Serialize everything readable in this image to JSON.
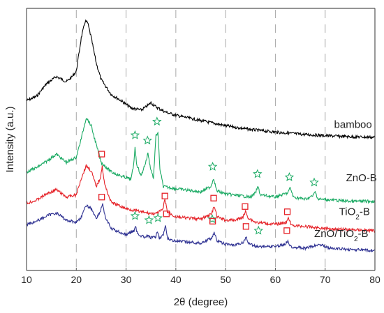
{
  "chart_data": {
    "type": "line",
    "title": "",
    "xlabel": "2θ (degree)",
    "ylabel": "Intensity (a.u.)",
    "xlim": [
      10,
      80
    ],
    "xticks": [
      "10",
      "20",
      "30",
      "40",
      "50",
      "60",
      "70",
      "80"
    ],
    "grid": "dashed vertical lines at 20, 30, 40, 50, 60, 70",
    "legend": "series labels printed at right end of each curve",
    "series": [
      {
        "name": "bamboo",
        "color": "#000000",
        "points": [
          [
            10,
            4.4
          ],
          [
            12,
            4.2
          ],
          [
            14,
            3.6
          ],
          [
            16,
            3.25
          ],
          [
            18,
            3.5
          ],
          [
            19,
            3.3
          ],
          [
            20,
            3.0
          ],
          [
            21,
            1.4
          ],
          [
            21.8,
            0.6
          ],
          [
            22.3,
            0.7
          ],
          [
            23,
            1.4
          ],
          [
            24,
            2.6
          ],
          [
            25,
            3.4
          ],
          [
            27,
            4.1
          ],
          [
            29,
            4.4
          ],
          [
            31,
            4.75
          ],
          [
            33,
            4.85
          ],
          [
            34,
            4.7
          ],
          [
            35,
            4.5
          ],
          [
            36,
            4.7
          ],
          [
            38,
            4.95
          ],
          [
            40,
            5.1
          ],
          [
            45,
            5.35
          ],
          [
            50,
            5.6
          ],
          [
            55,
            5.78
          ],
          [
            60,
            5.9
          ],
          [
            65,
            6.0
          ],
          [
            70,
            6.07
          ],
          [
            75,
            6.12
          ],
          [
            80,
            6.15
          ]
        ]
      },
      {
        "name": "ZnO-B",
        "color": "#1aaa63",
        "points": [
          [
            10,
            7.8
          ],
          [
            12,
            7.6
          ],
          [
            14,
            7.3
          ],
          [
            16,
            6.95
          ],
          [
            18,
            7.35
          ],
          [
            20,
            7.1
          ],
          [
            21,
            6.2
          ],
          [
            22,
            5.2
          ],
          [
            23,
            5.6
          ],
          [
            24,
            6.5
          ],
          [
            25,
            7.35
          ],
          [
            27,
            7.8
          ],
          [
            29,
            8.0
          ],
          [
            31,
            8.15
          ],
          [
            31.5,
            7.5
          ],
          [
            31.8,
            6.6
          ],
          [
            32.1,
            7.4
          ],
          [
            33,
            8.0
          ],
          [
            34,
            7.3
          ],
          [
            34.4,
            6.9
          ],
          [
            34.8,
            7.5
          ],
          [
            35.5,
            8.1
          ],
          [
            36,
            6.1
          ],
          [
            36.4,
            5.9
          ],
          [
            36.8,
            7.7
          ],
          [
            37.5,
            8.5
          ],
          [
            40,
            8.6
          ],
          [
            45,
            8.75
          ],
          [
            47,
            8.5
          ],
          [
            47.6,
            8.1
          ],
          [
            48.2,
            8.7
          ],
          [
            50,
            8.85
          ],
          [
            55,
            9.0
          ],
          [
            56,
            8.8
          ],
          [
            56.5,
            8.5
          ],
          [
            57,
            8.9
          ],
          [
            60,
            9.0
          ],
          [
            62.5,
            8.8
          ],
          [
            63,
            8.55
          ],
          [
            63.6,
            9.0
          ],
          [
            66,
            9.1
          ],
          [
            67.5,
            8.95
          ],
          [
            68,
            8.75
          ],
          [
            68.6,
            9.1
          ],
          [
            72,
            9.15
          ],
          [
            75,
            9.2
          ],
          [
            80,
            9.2
          ]
        ]
      },
      {
        "name": "TiO2-B",
        "color": "#e52127",
        "points": [
          [
            10,
            9.3
          ],
          [
            12,
            9.15
          ],
          [
            14,
            8.85
          ],
          [
            16,
            8.65
          ],
          [
            18,
            9.0
          ],
          [
            20,
            8.9
          ],
          [
            21,
            8.1
          ],
          [
            22,
            7.5
          ],
          [
            23,
            7.75
          ],
          [
            24,
            8.5
          ],
          [
            24.8,
            8.1
          ],
          [
            25.2,
            7.55
          ],
          [
            25.7,
            8.4
          ],
          [
            27,
            9.25
          ],
          [
            30,
            9.55
          ],
          [
            34,
            9.75
          ],
          [
            36,
            9.8
          ],
          [
            37.4,
            9.6
          ],
          [
            37.8,
            9.1
          ],
          [
            38.3,
            9.7
          ],
          [
            40,
            9.95
          ],
          [
            45,
            10.05
          ],
          [
            47.2,
            9.8
          ],
          [
            47.7,
            9.45
          ],
          [
            48.3,
            9.95
          ],
          [
            50,
            10.1
          ],
          [
            52,
            10.1
          ],
          [
            53.5,
            9.95
          ],
          [
            54,
            9.7
          ],
          [
            54.6,
            10.0
          ],
          [
            56,
            10.2
          ],
          [
            60,
            10.3
          ],
          [
            62.2,
            10.2
          ],
          [
            62.7,
            10.0
          ],
          [
            63.2,
            10.35
          ],
          [
            66,
            10.4
          ],
          [
            70,
            10.5
          ],
          [
            75,
            10.55
          ],
          [
            80,
            10.6
          ]
        ]
      },
      {
        "name": "ZnO/TiO2-B",
        "color": "#2e3192",
        "points": [
          [
            10,
            10.3
          ],
          [
            12,
            10.15
          ],
          [
            14,
            9.9
          ],
          [
            16,
            9.75
          ],
          [
            18,
            10.1
          ],
          [
            20,
            10.2
          ],
          [
            21,
            9.95
          ],
          [
            22,
            9.4
          ],
          [
            23,
            9.55
          ],
          [
            24,
            10.0
          ],
          [
            24.8,
            9.7
          ],
          [
            25.3,
            9.3
          ],
          [
            25.8,
            9.95
          ],
          [
            27,
            10.5
          ],
          [
            30,
            10.8
          ],
          [
            31.6,
            10.6
          ],
          [
            31.9,
            10.4
          ],
          [
            32.3,
            10.75
          ],
          [
            34,
            10.95
          ],
          [
            34.4,
            10.8
          ],
          [
            34.8,
            10.95
          ],
          [
            36,
            10.9
          ],
          [
            36.3,
            10.6
          ],
          [
            36.7,
            10.95
          ],
          [
            37.5,
            10.8
          ],
          [
            37.9,
            10.4
          ],
          [
            38.4,
            11.0
          ],
          [
            40,
            11.1
          ],
          [
            45,
            11.2
          ],
          [
            47.2,
            10.95
          ],
          [
            47.7,
            10.7
          ],
          [
            48.3,
            11.1
          ],
          [
            50,
            11.25
          ],
          [
            52,
            11.3
          ],
          [
            53.6,
            11.15
          ],
          [
            54.1,
            10.9
          ],
          [
            54.6,
            11.2
          ],
          [
            56,
            11.35
          ],
          [
            60,
            11.35
          ],
          [
            62,
            11.25
          ],
          [
            62.5,
            11.05
          ],
          [
            63,
            11.35
          ],
          [
            66,
            11.45
          ],
          [
            69,
            11.25
          ],
          [
            71,
            11.45
          ],
          [
            75,
            11.5
          ],
          [
            80,
            11.55
          ]
        ]
      }
    ],
    "markers": {
      "star_color": "#1aaa63",
      "square_color": "#e52127",
      "stars": [
        [
          31.8,
          6.05
        ],
        [
          34.3,
          6.3
        ],
        [
          36.2,
          5.4
        ],
        [
          47.4,
          7.55
        ],
        [
          56.4,
          7.9
        ],
        [
          62.8,
          8.05
        ],
        [
          67.8,
          8.3
        ],
        [
          31.8,
          9.9
        ],
        [
          34.6,
          10.1
        ],
        [
          36.4,
          10.0
        ],
        [
          47.3,
          10.05
        ],
        [
          56.6,
          10.6
        ]
      ],
      "squares": [
        [
          25.1,
          6.95
        ],
        [
          25.1,
          9.0
        ],
        [
          37.8,
          8.95
        ],
        [
          47.6,
          9.05
        ],
        [
          53.9,
          9.45
        ],
        [
          62.4,
          9.7
        ],
        [
          38.1,
          9.8
        ],
        [
          47.4,
          10.15
        ],
        [
          54.1,
          10.4
        ],
        [
          62.3,
          10.6
        ]
      ]
    },
    "labels": [
      {
        "text": "bamboo",
        "x": 71.8,
        "y": 5.7
      },
      {
        "text": "ZnO-B",
        "x": 74.2,
        "y": 8.25
      },
      {
        "text": "TiO2-B",
        "x": 72.8,
        "y": 9.85
      },
      {
        "text": "ZnO/TiO2-B",
        "x": 67.8,
        "y": 10.9
      }
    ]
  }
}
